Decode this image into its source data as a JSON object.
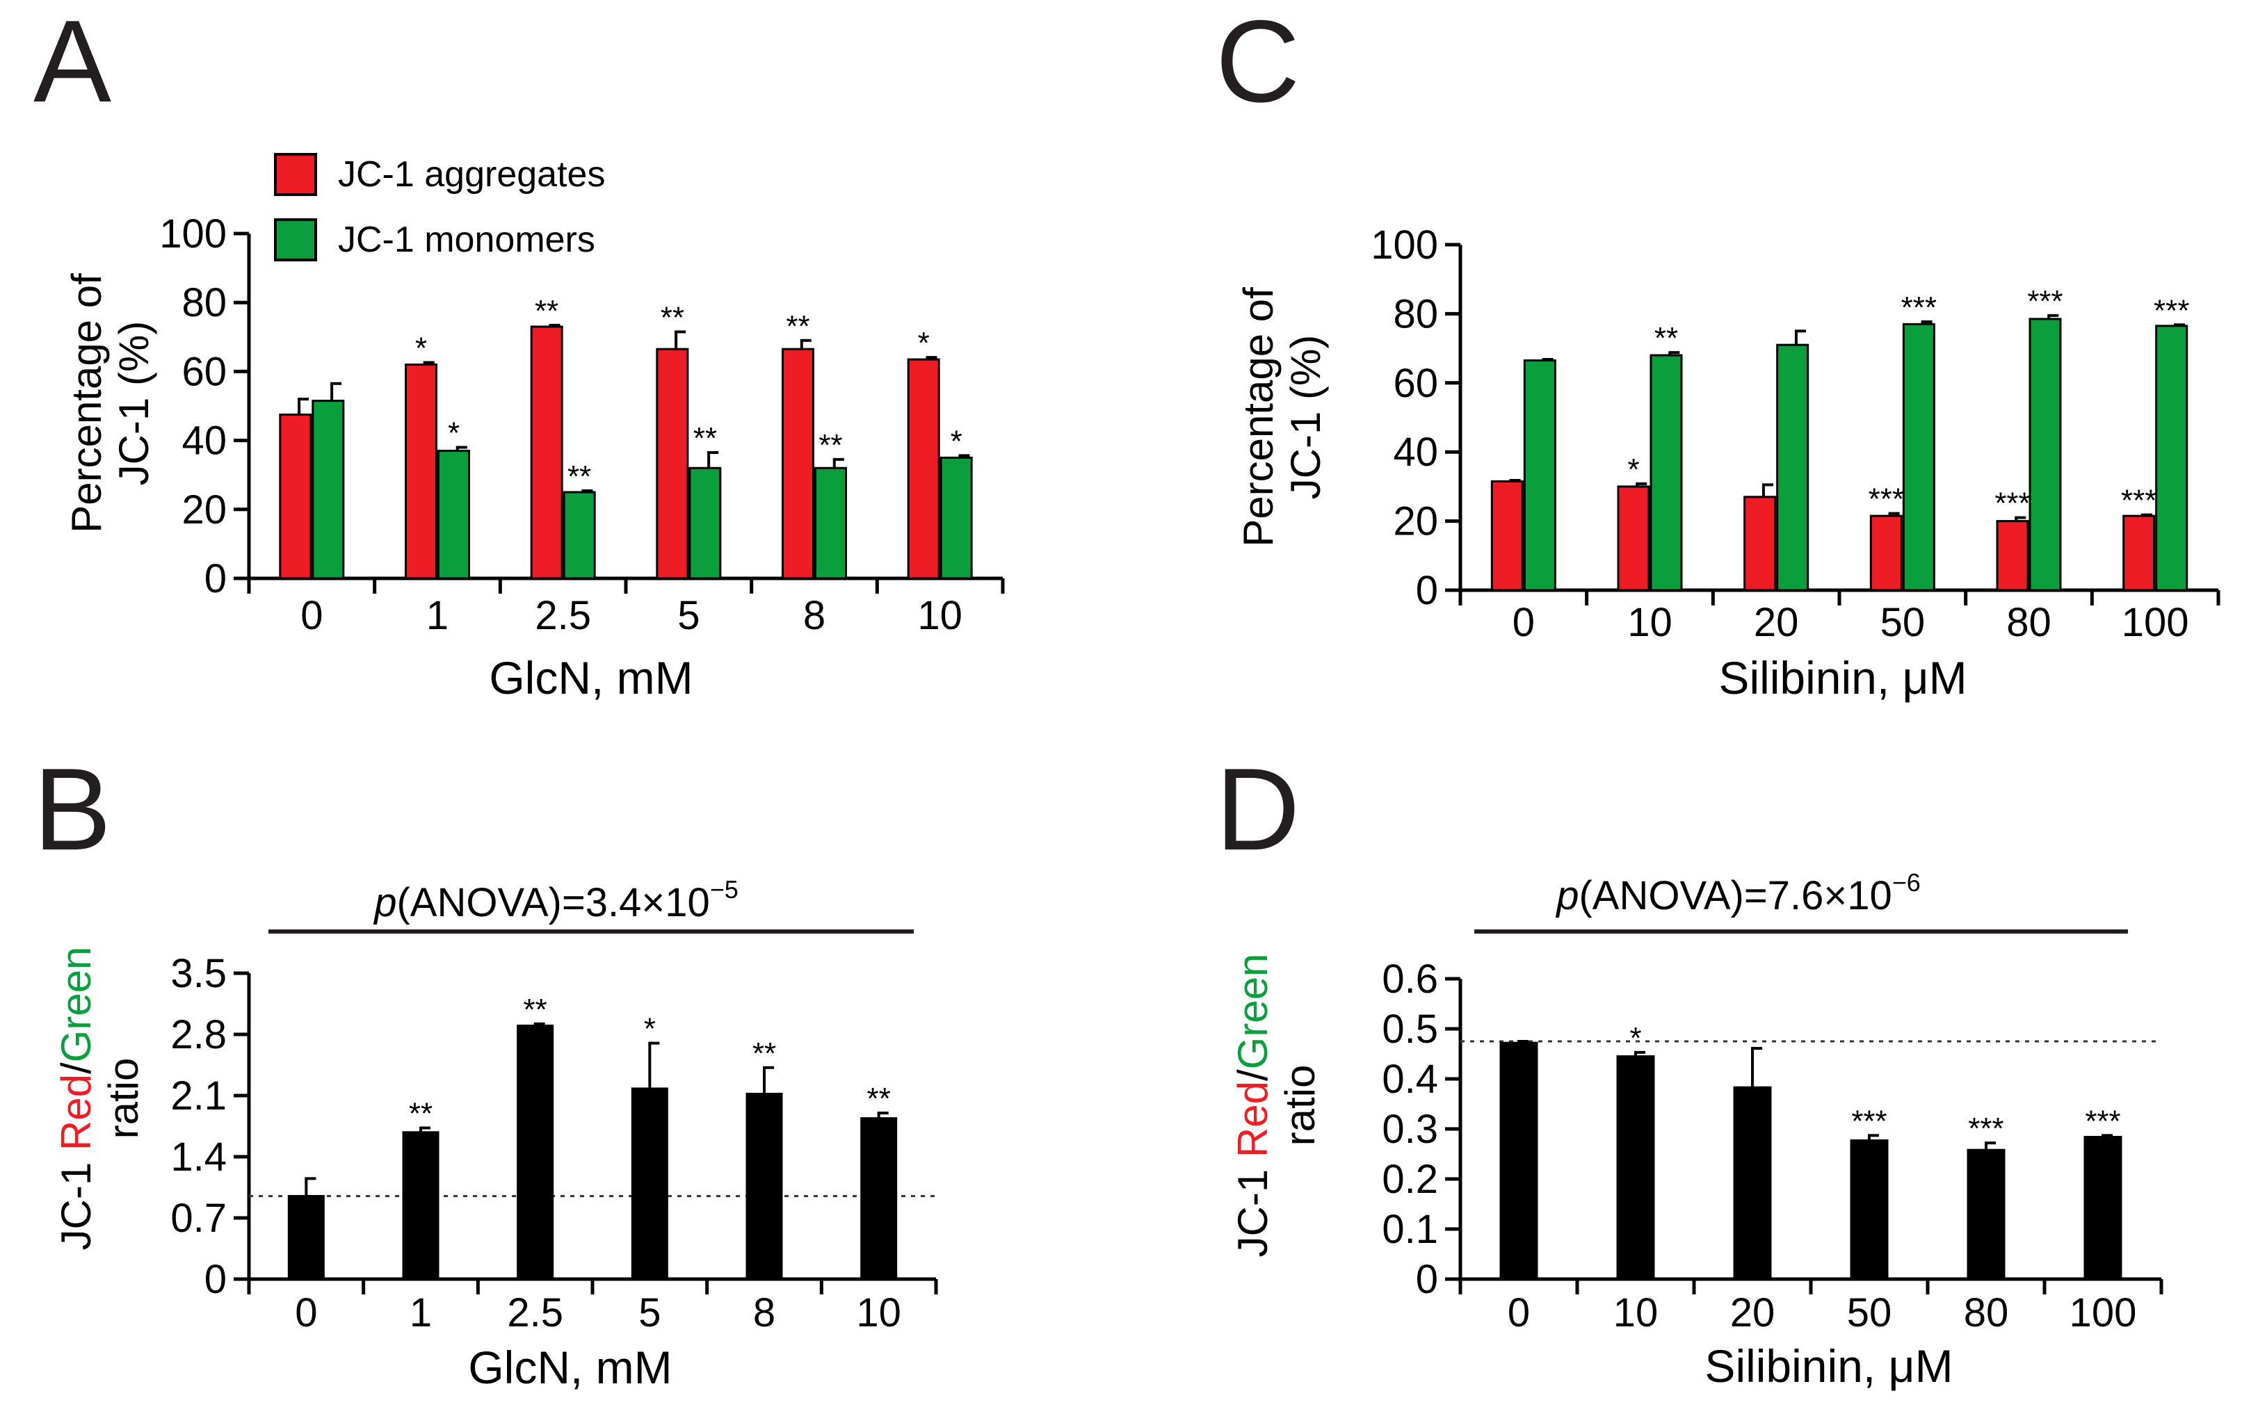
{
  "colors": {
    "red": "#ee1c25",
    "green": "#0a9e3c",
    "black": "#000000"
  },
  "chart_data": [
    {
      "panel": "A",
      "type": "bar",
      "categories": [
        "0",
        "1",
        "2.5",
        "5",
        "8",
        "10"
      ],
      "xlabel": "GlcN, mM",
      "ylabel_line1": "Percentage of",
      "ylabel_line2": "JC-1 (%)",
      "ylim": [
        0,
        100
      ],
      "yticks": [
        "0",
        "20",
        "40",
        "60",
        "80",
        "100"
      ],
      "legend": [
        "JC-1 aggregates",
        "JC-1 monomers"
      ],
      "legend_position": "top-left",
      "series": [
        {
          "name": "JC-1 aggregates",
          "color": "red",
          "values": [
            47.5,
            62,
            73,
            66.5,
            66.5,
            63.5
          ],
          "errors": [
            4.5,
            0.6,
            0.4,
            5,
            2.5,
            0.6
          ],
          "stars": [
            "",
            "*",
            "**",
            "**",
            "**",
            "*"
          ]
        },
        {
          "name": "JC-1 monomers",
          "color": "green",
          "values": [
            51.5,
            37,
            25,
            32,
            32,
            35
          ],
          "errors": [
            5,
            1,
            0.4,
            4.5,
            2.5,
            0.6
          ],
          "stars": [
            "",
            "*",
            "**",
            "**",
            "**",
            "*"
          ]
        }
      ]
    },
    {
      "panel": "B",
      "type": "bar",
      "categories": [
        "0",
        "1",
        "2.5",
        "5",
        "8",
        "10"
      ],
      "xlabel": "GlcN, mM",
      "ylabel_pre": "JC-1 ",
      "ylabel_red": "Red",
      "ylabel_slash": "/",
      "ylabel_green": "Green",
      "ylabel_line2": "ratio",
      "ylim": [
        0,
        3.5
      ],
      "yticks": [
        "0",
        "0.7",
        "1.4",
        "2.1",
        "2.8",
        "3.5"
      ],
      "reference_line": 0.95,
      "pvalue_p": "p",
      "pvalue_mid": "(ANOVA)=3.4×10",
      "pvalue_exp": "−5",
      "series": [
        {
          "name": "JC-1 Red/Green ratio",
          "color": "black",
          "values": [
            0.95,
            1.68,
            2.9,
            2.18,
            2.12,
            1.84
          ],
          "errors": [
            0.2,
            0.05,
            0.02,
            0.52,
            0.3,
            0.06
          ],
          "stars": [
            "",
            "**",
            "**",
            "*",
            "**",
            "**"
          ]
        }
      ]
    },
    {
      "panel": "C",
      "type": "bar",
      "categories": [
        "0",
        "10",
        "20",
        "50",
        "80",
        "100"
      ],
      "xlabel": "Silibinin, μM",
      "ylabel_line1": "Percentage of",
      "ylabel_line2": "JC-1 (%)",
      "ylim": [
        0,
        100
      ],
      "yticks": [
        "0",
        "20",
        "40",
        "60",
        "80",
        "100"
      ],
      "series": [
        {
          "name": "JC-1 aggregates",
          "color": "red",
          "values": [
            31.5,
            30,
            27,
            21.5,
            20,
            21.5
          ],
          "errors": [
            0.3,
            0.8,
            3.5,
            0.7,
            1,
            0.3
          ],
          "stars": [
            "",
            "*",
            "",
            "***",
            "***",
            "***"
          ]
        },
        {
          "name": "JC-1 monomers",
          "color": "green",
          "values": [
            66.5,
            68,
            71,
            77,
            78.5,
            76.5
          ],
          "errors": [
            0.3,
            0.8,
            4,
            0.7,
            1,
            0.3
          ],
          "stars": [
            "",
            "**",
            "",
            "***",
            "***",
            "***"
          ]
        }
      ]
    },
    {
      "panel": "D",
      "type": "bar",
      "categories": [
        "0",
        "10",
        "20",
        "50",
        "80",
        "100"
      ],
      "xlabel": "Silibinin, μM",
      "ylabel_pre": "JC-1 ",
      "ylabel_red": "Red",
      "ylabel_slash": "/",
      "ylabel_green": "Green",
      "ylabel_line2": "ratio",
      "ylim": [
        0,
        0.6
      ],
      "yticks": [
        "0",
        "0.1",
        "0.2",
        "0.3",
        "0.4",
        "0.5",
        "0.6"
      ],
      "reference_line": 0.475,
      "pvalue_p": "p",
      "pvalue_mid": "(ANOVA)=7.6×10",
      "pvalue_exp": "−6",
      "series": [
        {
          "name": "JC-1 Red/Green ratio",
          "color": "black",
          "values": [
            0.472,
            0.445,
            0.383,
            0.277,
            0.258,
            0.284
          ],
          "errors": [
            0.003,
            0.008,
            0.078,
            0.01,
            0.014,
            0.003
          ],
          "stars": [
            "",
            "*",
            "",
            "***",
            "***",
            "***"
          ]
        }
      ]
    }
  ]
}
